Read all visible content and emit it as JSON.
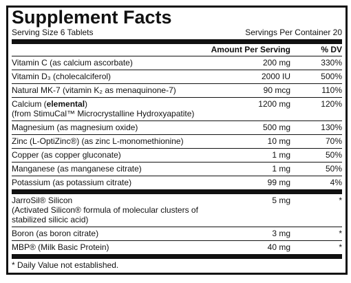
{
  "header": {
    "title": "Supplement Facts",
    "serving_size": "Serving Size 6 Tablets",
    "servings_per_container": "Servings Per Container 20"
  },
  "table": {
    "columns": [
      "Amount Per Serving",
      "% DV"
    ],
    "sections": [
      {
        "rows": [
          {
            "lines": [
              [
                {
                  "text": "Vitamin C (as calcium ascorbate)"
                }
              ]
            ],
            "amount": "200 mg",
            "dv": "330%"
          },
          {
            "lines": [
              [
                {
                  "text": "Vitamin D₃ (cholecalciferol)"
                }
              ]
            ],
            "amount": "2000 IU",
            "dv": "500%"
          },
          {
            "lines": [
              [
                {
                  "text": "Natural MK-7 (vitamin K₂ as menaquinone-7)"
                }
              ]
            ],
            "amount": "90 mcg",
            "dv": "110%"
          },
          {
            "lines": [
              [
                {
                  "text": "Calcium ("
                },
                {
                  "text": "elemental",
                  "bold": true
                },
                {
                  "text": ")"
                }
              ],
              [
                {
                  "text": "(from StimuCal™ Microcrystalline Hydroxyapatite)"
                }
              ]
            ],
            "amount": "1200 mg",
            "dv": "120%"
          },
          {
            "lines": [
              [
                {
                  "text": "Magnesium (as magnesium oxide)"
                }
              ]
            ],
            "amount": "500 mg",
            "dv": "130%"
          },
          {
            "lines": [
              [
                {
                  "text": "Zinc (L-OptiZinc®) (as zinc L-monomethionine)"
                }
              ]
            ],
            "amount": "10 mg",
            "dv": "70%"
          },
          {
            "lines": [
              [
                {
                  "text": "Copper (as copper gluconate)"
                }
              ]
            ],
            "amount": "1 mg",
            "dv": "50%"
          },
          {
            "lines": [
              [
                {
                  "text": "Manganese (as manganese citrate)"
                }
              ]
            ],
            "amount": "1 mg",
            "dv": "50%"
          },
          {
            "lines": [
              [
                {
                  "text": "Potassium (as potassium citrate)"
                }
              ]
            ],
            "amount": "99 mg",
            "dv": "4%"
          }
        ]
      },
      {
        "rows": [
          {
            "lines": [
              [
                {
                  "text": "JarroSil® Silicon"
                }
              ],
              [
                {
                  "text": "(Activated Silicon® formula of molecular clusters of"
                }
              ],
              [
                {
                  "text": "stabilized silicic acid)"
                }
              ]
            ],
            "amount": "5 mg",
            "dv": "*"
          },
          {
            "lines": [
              [
                {
                  "text": "Boron (as boron citrate)"
                }
              ]
            ],
            "amount": "3 mg",
            "dv": "*"
          },
          {
            "lines": [
              [
                {
                  "text": "MBP® (Milk Basic Protein)"
                }
              ]
            ],
            "amount": "40 mg",
            "dv": "*"
          }
        ]
      }
    ]
  },
  "footnote": "* Daily Value not established."
}
